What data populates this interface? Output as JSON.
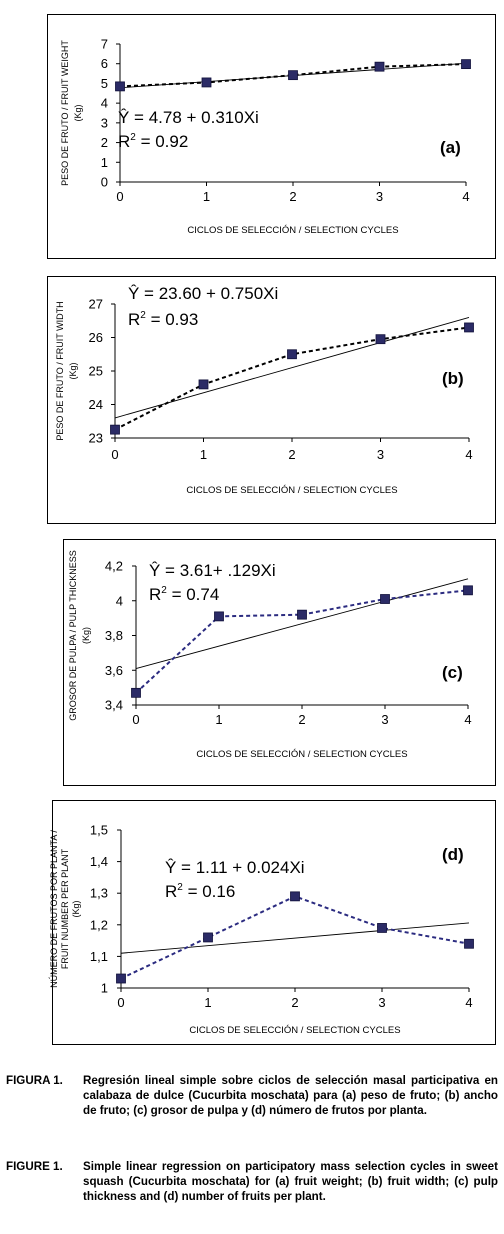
{
  "chart_data": [
    {
      "type": "line",
      "panel_tag": "(a)",
      "ylabel": "PESO DE FRUTO / FRUIT WEIGHT (Kg)",
      "ylabel_lines": [
        "PESO DE FRUTO / FRUIT WEIGHT",
        "(Kg)"
      ],
      "xlabel": "CICLOS DE SELECCIÓN / SELECTION CYCLES",
      "x": [
        0,
        1,
        2,
        3,
        4
      ],
      "values": [
        4.85,
        5.05,
        5.42,
        5.85,
        5.98
      ],
      "regression": {
        "intercept": 4.78,
        "slope": 0.31
      },
      "equation": "Ŷ = 4.78 + 0.310Xi",
      "r2_prefix": "R",
      "r2_exp": "2",
      "r2_value": " = 0.92",
      "xlim": [
        0,
        4
      ],
      "ylim": [
        0,
        7
      ],
      "yticks": [
        "0",
        "1",
        "2",
        "3",
        "4",
        "5",
        "6",
        "7"
      ],
      "xticks": [
        "0",
        "1",
        "2",
        "3",
        "4"
      ],
      "series_color": "#000000",
      "marker_color": "#2b2b66"
    },
    {
      "type": "line",
      "panel_tag": "(b)",
      "ylabel": "PESO DE FRUTO / FRUIT WIDTH (Kg)",
      "ylabel_lines": [
        "PESO DE FRUTO / FRUIT WIDTH",
        "(Kg)"
      ],
      "xlabel": "CICLOS DE SELECCIÓN / SELECTION CYCLES",
      "x": [
        0,
        1,
        2,
        3,
        4
      ],
      "values": [
        23.25,
        24.6,
        25.5,
        25.95,
        26.3
      ],
      "regression": {
        "intercept": 23.6,
        "slope": 0.75
      },
      "equation": "Ŷ = 23.60 + 0.750Xi",
      "r2_prefix": "R",
      "r2_exp": "2",
      "r2_value": " = 0.93",
      "xlim": [
        0,
        4
      ],
      "ylim": [
        23,
        27
      ],
      "yticks": [
        "23",
        "24",
        "25",
        "26",
        "27"
      ],
      "xticks": [
        "0",
        "1",
        "2",
        "3",
        "4"
      ],
      "series_color": "#000000",
      "marker_color": "#2b2b66"
    },
    {
      "type": "line",
      "panel_tag": "(c)",
      "ylabel": "GROSOR DE PULPA / PULP THICKNESS (Kg)",
      "ylabel_lines": [
        "GROSOR DE PULPA / PULP THICKNESS",
        "(Kg)"
      ],
      "xlabel": "CICLOS DE SELECCIÓN / SELECTION CYCLES",
      "x": [
        0,
        1,
        2,
        3,
        4
      ],
      "values": [
        3.47,
        3.91,
        3.92,
        4.01,
        4.06
      ],
      "regression": {
        "intercept": 3.61,
        "slope": 0.129
      },
      "equation": "Ŷ = 3.61+ .129Xi",
      "r2_prefix": "R",
      "r2_exp": "2",
      "r2_value": " = 0.74",
      "xlim": [
        0,
        4
      ],
      "ylim": [
        3.4,
        4.2
      ],
      "yticks": [
        "3,4",
        "3,6",
        "3,8",
        "4",
        "4,2"
      ],
      "xticks": [
        "0",
        "1",
        "2",
        "3",
        "4"
      ],
      "series_color": "#2b2b80",
      "marker_color": "#2b2b66"
    },
    {
      "type": "line",
      "panel_tag": "(d)",
      "ylabel": "NÚMERO DE FRUTOS POR PLANTA / FRUIT NUMBER PER PLANT (Kg)",
      "ylabel_lines": [
        "NÚMERO DE FRUTOS POR PLANTA /",
        "FRUIT NUMBER PER PLANT",
        "(Kg)"
      ],
      "xlabel": "CICLOS DE SELECCIÓN / SELECTION CYCLES",
      "x": [
        0,
        1,
        2,
        3,
        4
      ],
      "values": [
        1.03,
        1.16,
        1.29,
        1.19,
        1.14
      ],
      "regression": {
        "intercept": 1.11,
        "slope": 0.024
      },
      "equation": "Ŷ = 1.11 + 0.024Xi",
      "r2_prefix": "R",
      "r2_exp": "2",
      "r2_value": " = 0.16",
      "xlim": [
        0,
        4
      ],
      "ylim": [
        1,
        1.5
      ],
      "yticks": [
        "1",
        "1,1",
        "1,2",
        "1,3",
        "1,4",
        "1,5"
      ],
      "xticks": [
        "0",
        "1",
        "2",
        "3",
        "4"
      ],
      "series_color": "#2b2b80",
      "marker_color": "#2b2b66"
    }
  ],
  "captions": [
    {
      "label": "FIGURA 1.",
      "text": "Regresión lineal simple sobre ciclos de selección masal participativa en calabaza de dulce (Cucurbita moschata) para (a) peso de fruto; (b) ancho de fruto; (c) grosor de pulpa y (d) número de frutos por planta."
    },
    {
      "label": "FIGURE 1.",
      "text": "Simple linear regression on participatory mass selection cycles in sweet squash (Cucurbita moschata) for (a) fruit weight; (b) fruit width; (c) pulp thickness and (d) number of fruits per plant."
    }
  ]
}
